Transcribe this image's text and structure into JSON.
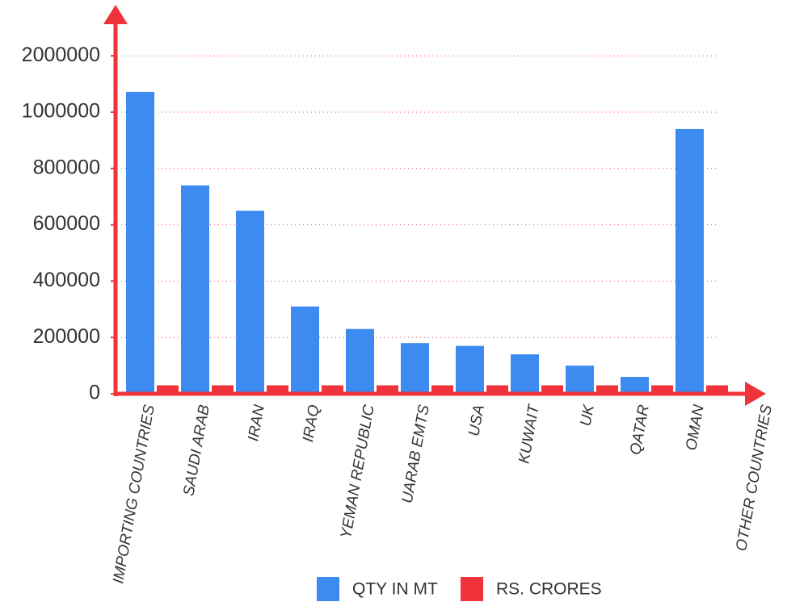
{
  "chart_data": {
    "type": "bar",
    "x_label": "OTHER COUNTRIES",
    "categories": [
      "IMPORTING COUNTRIES",
      "SAUDI ARAB",
      "IRAN",
      "IRAQ",
      "YEMAN REPUBLIC",
      "UARAB EMTS",
      "USA",
      "KUWAIT",
      "UK",
      "QATAR",
      "OMAN"
    ],
    "series": [
      {
        "name": "QTY IN MT",
        "color": "#3d8af0",
        "values": [
          1360000,
          740000,
          650000,
          310000,
          230000,
          180000,
          170000,
          140000,
          100000,
          60000,
          940000
        ]
      },
      {
        "name": "RS. CRORES",
        "color": "#f0333a",
        "values": [
          30000,
          30000,
          30000,
          30000,
          30000,
          30000,
          30000,
          30000,
          30000,
          30000,
          30000
        ]
      }
    ],
    "ylim": [
      0,
      2000000
    ],
    "yticks": [
      0,
      200000,
      400000,
      600000,
      800000,
      1000000,
      2000000
    ],
    "grid": true,
    "legend": "bottom"
  }
}
